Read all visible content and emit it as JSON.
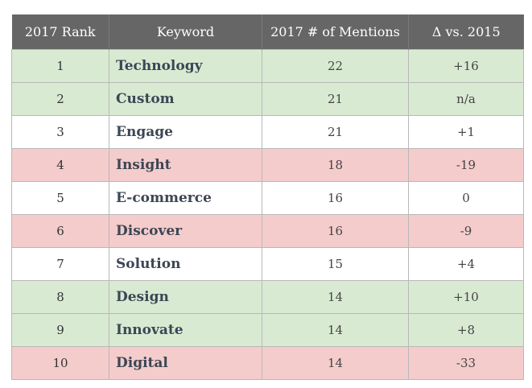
{
  "table": {
    "headers": [
      "2017 Rank",
      "Keyword",
      "2017 # of Mentions",
      "Δ vs. 2015"
    ],
    "rows": [
      {
        "rank": "1",
        "keyword": "Technology",
        "mentions": "22",
        "delta": "+16",
        "highlight": "green"
      },
      {
        "rank": "2",
        "keyword": "Custom",
        "mentions": "21",
        "delta": "n/a",
        "highlight": "green"
      },
      {
        "rank": "3",
        "keyword": "Engage",
        "mentions": "21",
        "delta": "+1",
        "highlight": "white"
      },
      {
        "rank": "4",
        "keyword": "Insight",
        "mentions": "18",
        "delta": "-19",
        "highlight": "red"
      },
      {
        "rank": "5",
        "keyword": "E-commerce",
        "mentions": "16",
        "delta": "0",
        "highlight": "white"
      },
      {
        "rank": "6",
        "keyword": "Discover",
        "mentions": "16",
        "delta": "-9",
        "highlight": "red"
      },
      {
        "rank": "7",
        "keyword": "Solution",
        "mentions": "15",
        "delta": "+4",
        "highlight": "white"
      },
      {
        "rank": "8",
        "keyword": "Design",
        "mentions": "14",
        "delta": "+10",
        "highlight": "green"
      },
      {
        "rank": "9",
        "keyword": "Innovate",
        "mentions": "14",
        "delta": "+8",
        "highlight": "green"
      },
      {
        "rank": "10",
        "keyword": "Digital",
        "mentions": "14",
        "delta": "-33",
        "highlight": "red"
      }
    ]
  },
  "colors": {
    "header_bg": "#666666",
    "green": "#d9ead3",
    "red": "#f4cccc",
    "white": "#ffffff"
  }
}
